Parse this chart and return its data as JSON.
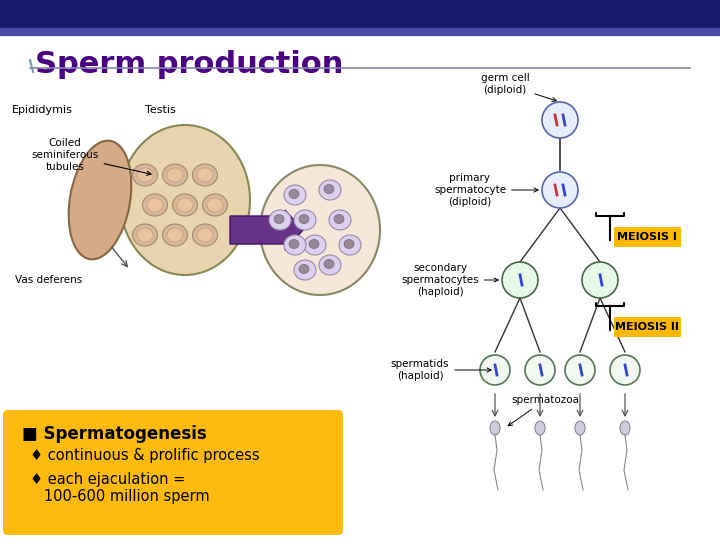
{
  "title": "Sperm production",
  "title_color": "#4B0082",
  "title_fontsize": 22,
  "header_bar_color": "#1a1a6e",
  "header_bar2_color": "#4a4aaa",
  "background_color": "#ffffff",
  "label_epididymis": "Epididymis",
  "label_testis": "Testis",
  "label_coiled": "Coiled\nseminiferous\ntubules",
  "label_vas": "Vas deferens",
  "label_germ": "germ cell\n(diploid)",
  "label_primary": "primary\nspermatocyte\n(diploid)",
  "label_secondary": "secondary\nspermatocytes\n(haploid)",
  "label_spermatids": "spermatids\n(haploid)",
  "label_spermatozoa": "spermatozoa",
  "label_meiosis1": "MEIOSIS I",
  "label_meiosis2": "MEIOSIS II",
  "meiosis_bg": "#FFB800",
  "bullet_color": "#4B0082",
  "box_color": "#FFB800",
  "box_text_title": "■ Spermatogenesis",
  "box_text_1": "♦ continuous & prolific process",
  "box_text_2": "♦ each ejaculation =\n   100-600 million sperm",
  "box_text_color": "#000000",
  "box_title_color": "#000000",
  "label_color": "#000000",
  "small_font": 7.5,
  "medium_font": 9,
  "large_font": 11
}
